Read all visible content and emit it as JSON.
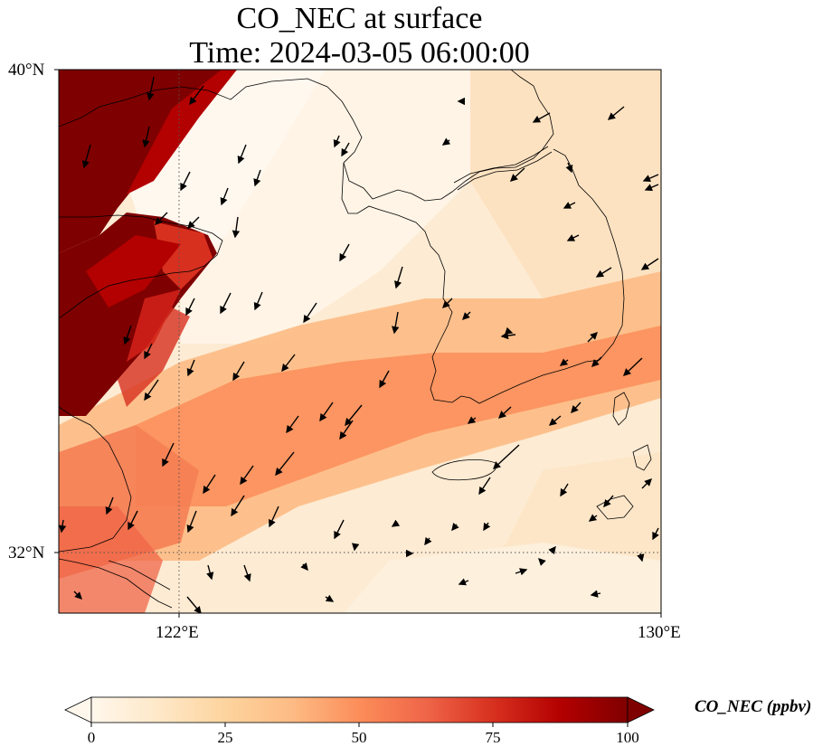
{
  "title": {
    "line1": "CO_NEC at surface",
    "line2": "Time: 2024-03-05 06:00:00"
  },
  "map": {
    "lat_range": [
      31,
      40
    ],
    "lon_range": [
      120,
      130
    ],
    "gridlines": {
      "lon": [
        122,
        130
      ],
      "lat": [
        32,
        40
      ]
    },
    "lat_ticks": [
      "40°N",
      "32°N"
    ],
    "lon_ticks": [
      "122°E",
      "130°E"
    ],
    "field_colormap": "OrRd",
    "vectors": "black wind arrows, mostly pointing south-southwest"
  },
  "colorbar": {
    "label": "CO_NEC (ppbv)",
    "ticks": [
      "0",
      "25",
      "50",
      "75",
      "100"
    ],
    "range": [
      0,
      100
    ],
    "extend": "both",
    "colors": [
      "#fff7ec",
      "#fee8c8",
      "#fdd49e",
      "#fdbb84",
      "#fc8d59",
      "#ef6548",
      "#d7301f",
      "#b30000",
      "#7f0000"
    ]
  }
}
